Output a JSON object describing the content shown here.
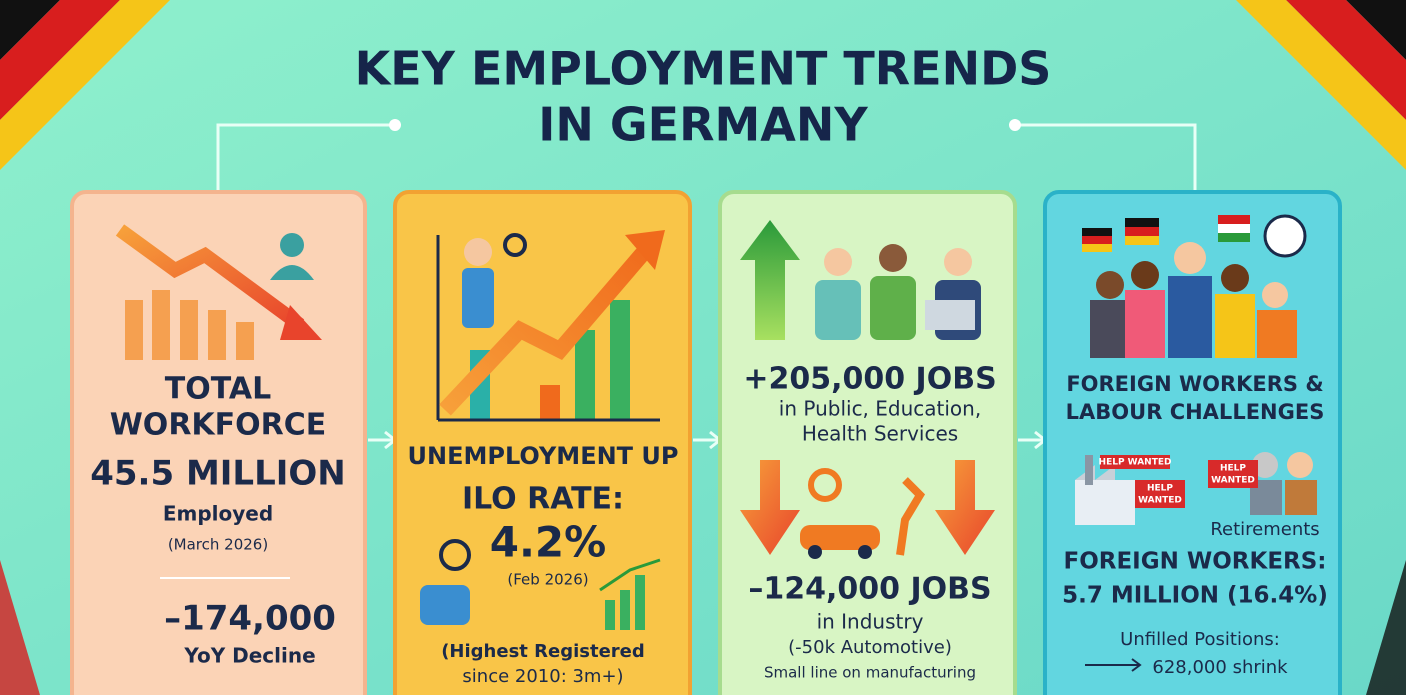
{
  "title": {
    "lines": [
      "KEY EMPLOYMENT TRENDS",
      "IN GERMANY"
    ]
  },
  "cards": [
    {
      "heading": [
        "TOTAL",
        "WORKFORCE"
      ],
      "figure": "45.5 MILLION",
      "label": "Employed",
      "date": "(March 2026)",
      "change": "–174,000",
      "change_label": "YoY Decline"
    },
    {
      "heading": [
        "UNEMPLOYMENT UP"
      ],
      "rate_label": "ILO RATE:",
      "rate": "4.2%",
      "date": "(Feb 2026)",
      "note": [
        "(Highest Registered",
        "since 2010: 3m+)"
      ]
    },
    {
      "gain": "+205,000 JOBS",
      "gain_detail": [
        "in Public, Education,",
        "Health Services"
      ],
      "loss": "–124,000 JOBS",
      "loss_detail": [
        "in Industry",
        "(-50k Automotive)",
        "Small line on manufacturing"
      ]
    },
    {
      "heading": [
        "FOREIGN WORKERS &",
        "LABOUR CHALLENGES"
      ],
      "signs": [
        {
          "lines": [
            "HELP WANTED"
          ]
        },
        {
          "lines": [
            "HELP",
            "WANTED"
          ]
        },
        {
          "lines": [
            "HELP",
            "WANTED"
          ]
        }
      ],
      "retirements": "Retirements",
      "figure_label": "FOREIGN WORKERS:",
      "figure": "5.7 MILLION (16.4%)",
      "unfilled_label": "Unfilled Positions:",
      "unfilled": "628,000 shrink"
    }
  ]
}
